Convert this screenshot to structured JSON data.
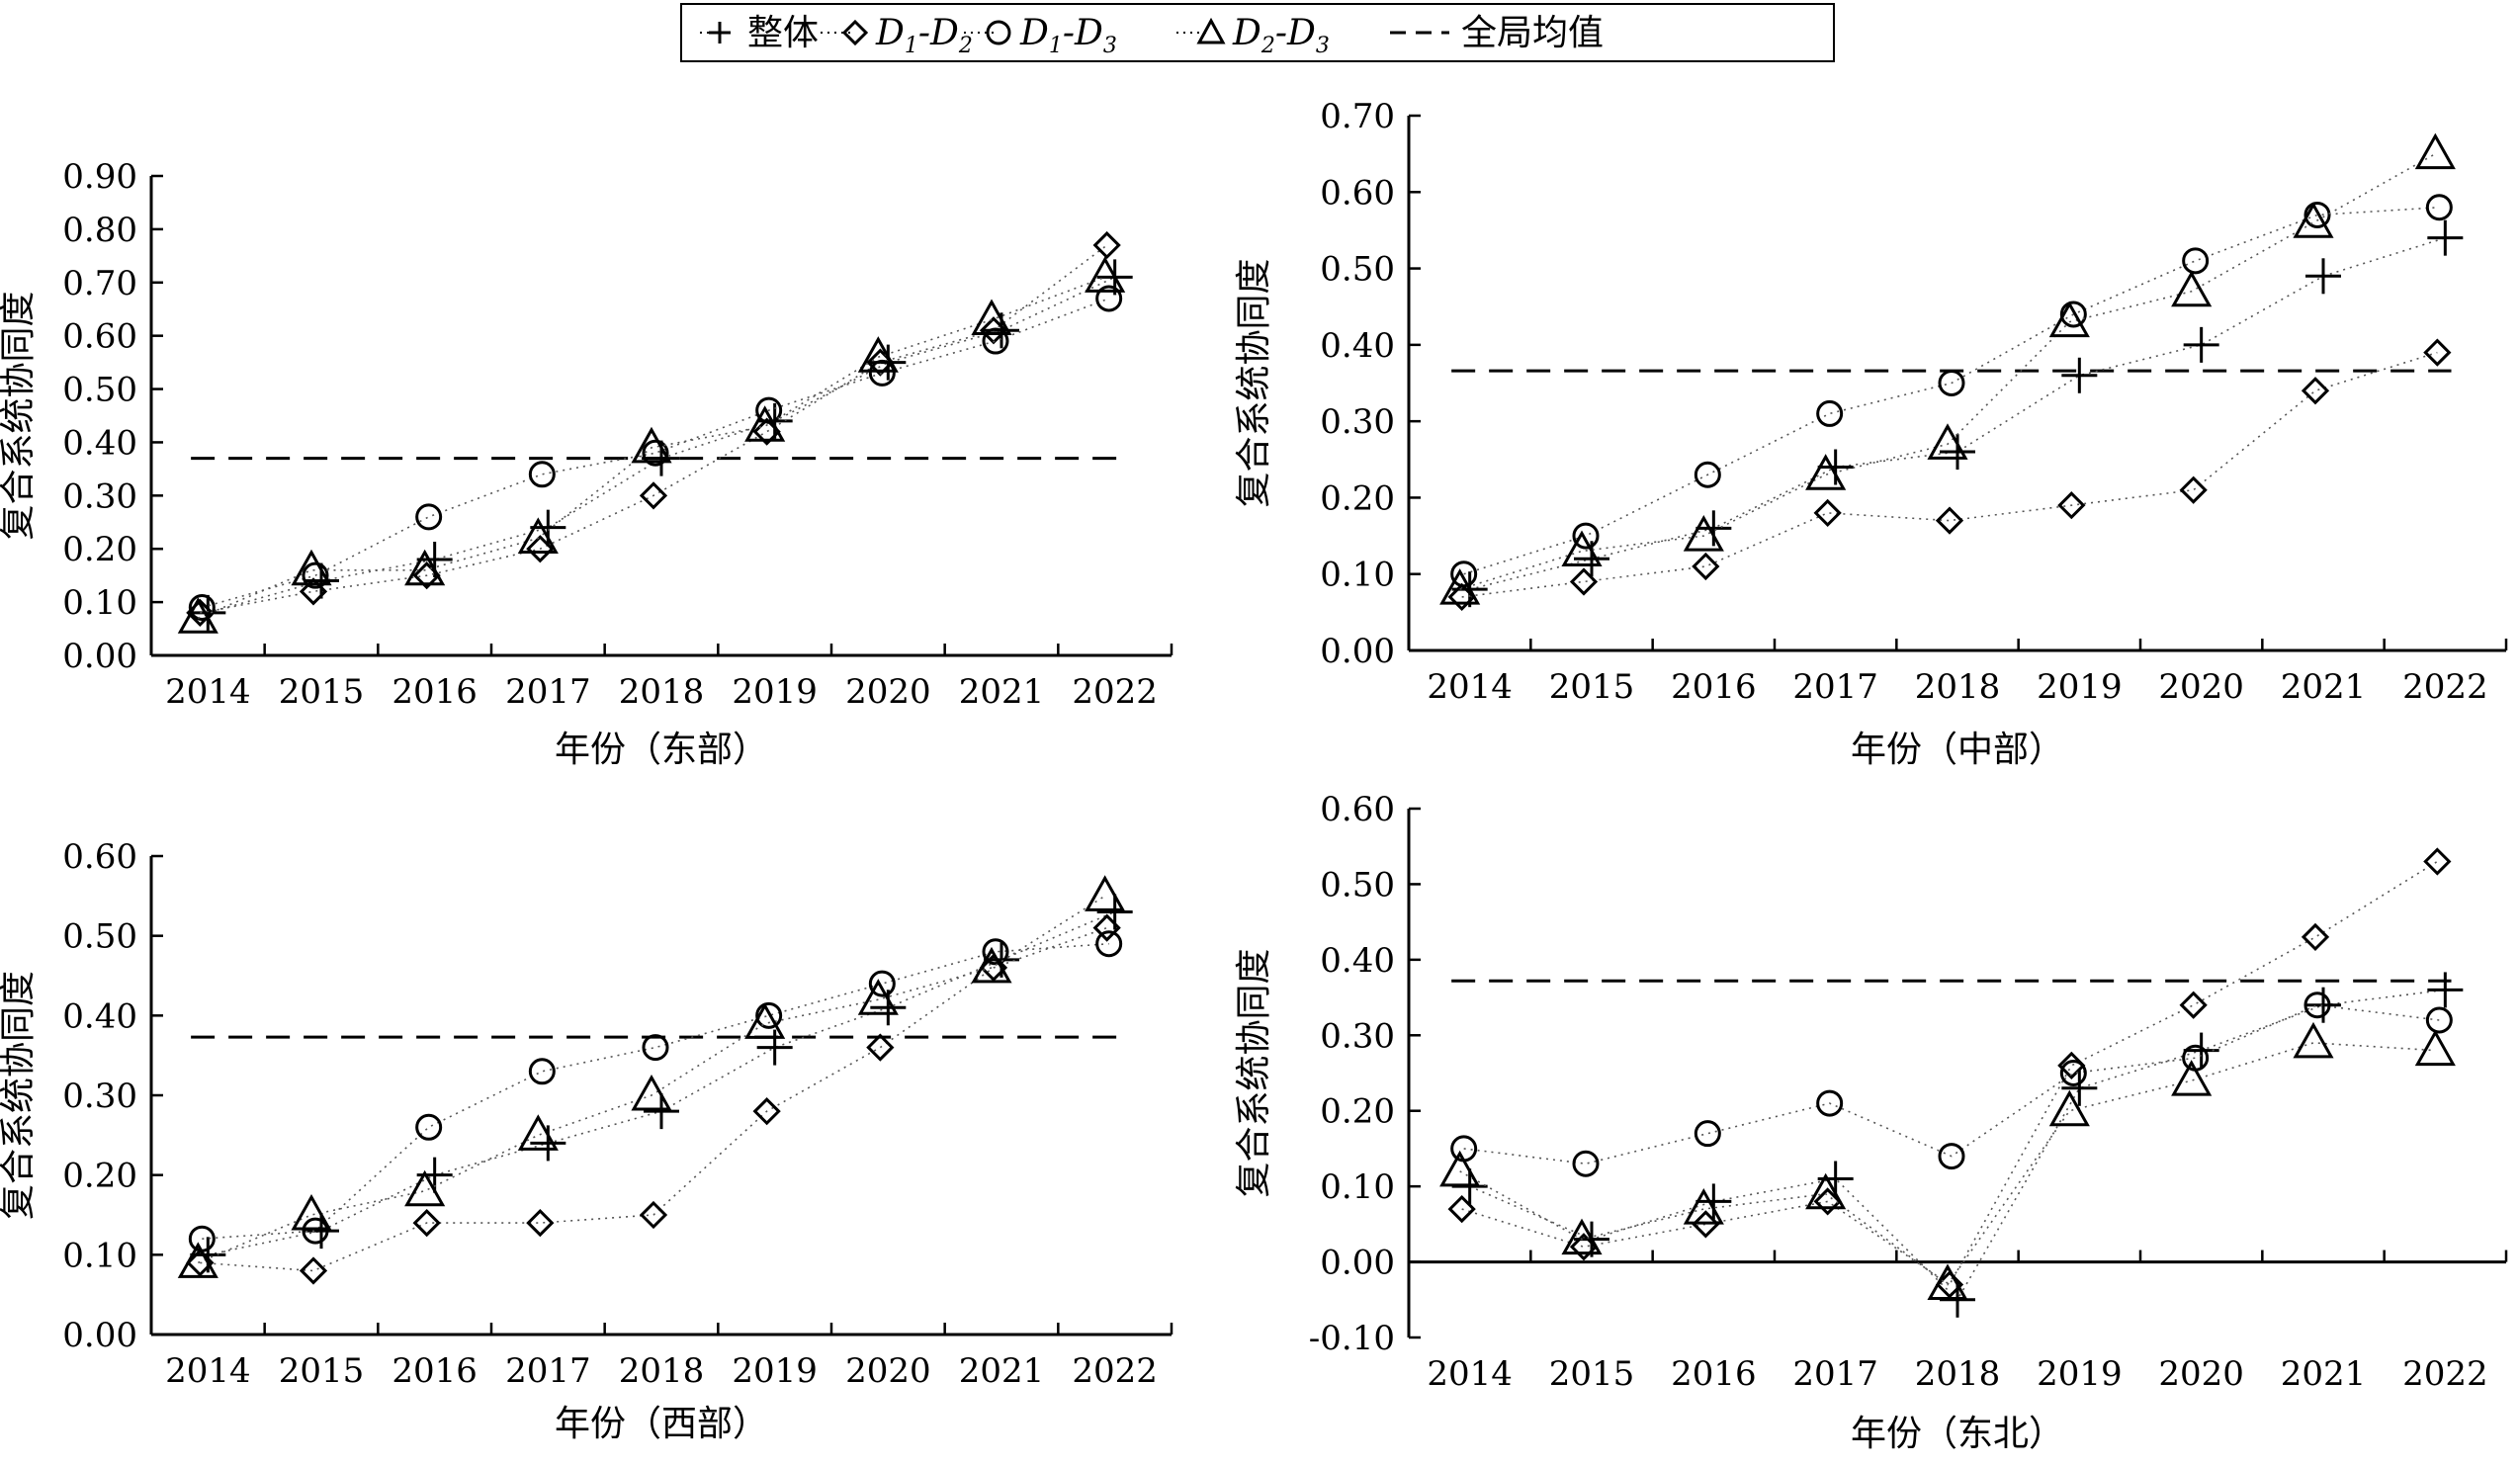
{
  "legend": {
    "items": [
      {
        "key": "overall",
        "label": "整体",
        "marker": "plus-icon"
      },
      {
        "key": "d12",
        "label_main1": "D",
        "label_sub1": "1",
        "label_main2": "-D",
        "label_sub2": "2",
        "marker": "diamond-icon"
      },
      {
        "key": "d13",
        "label_main1": "D",
        "label_sub1": "1",
        "label_main2": "-D",
        "label_sub2": "3",
        "marker": "circle-icon"
      },
      {
        "key": "d23",
        "label_main1": "D",
        "label_sub1": "2",
        "label_main2": "-D",
        "label_sub2": "3",
        "marker": "triangle-icon"
      },
      {
        "key": "mean",
        "label": "全局均值",
        "marker": "dashed-line-icon"
      }
    ]
  },
  "chart_data": [
    {
      "id": "east",
      "type": "scatter",
      "xlabel": "年份（东部）",
      "ylabel": "复合系统协同度",
      "categories": [
        "2014",
        "2015",
        "2016",
        "2017",
        "2018",
        "2019",
        "2020",
        "2021",
        "2022"
      ],
      "ylim": [
        0,
        0.9
      ],
      "yticks": [
        "0.00",
        "0.10",
        "0.20",
        "0.30",
        "0.40",
        "0.50",
        "0.60",
        "0.70",
        "0.80",
        "0.90"
      ],
      "ytick_step": 0.1,
      "global_mean": 0.37,
      "series": [
        {
          "key": "overall",
          "values": [
            0.08,
            0.14,
            0.18,
            0.24,
            0.37,
            0.44,
            0.55,
            0.61,
            0.71
          ]
        },
        {
          "key": "d12",
          "values": [
            0.08,
            0.12,
            0.15,
            0.2,
            0.3,
            0.42,
            0.55,
            0.61,
            0.77
          ]
        },
        {
          "key": "d13",
          "values": [
            0.09,
            0.15,
            0.26,
            0.34,
            0.38,
            0.46,
            0.53,
            0.59,
            0.67
          ]
        },
        {
          "key": "d23",
          "values": [
            0.07,
            0.16,
            0.16,
            0.22,
            0.39,
            0.43,
            0.56,
            0.63,
            0.71
          ]
        }
      ]
    },
    {
      "id": "central",
      "type": "scatter",
      "xlabel": "年份（中部）",
      "ylabel": "复合系统协同度",
      "categories": [
        "2014",
        "2015",
        "2016",
        "2017",
        "2018",
        "2019",
        "2020",
        "2021",
        "2022"
      ],
      "ylim": [
        0,
        0.7
      ],
      "yticks": [
        "0.00",
        "0.10",
        "0.20",
        "0.30",
        "0.40",
        "0.50",
        "0.60",
        "0.70"
      ],
      "ytick_step": 0.1,
      "global_mean": 0.366,
      "series": [
        {
          "key": "overall",
          "values": [
            0.08,
            0.12,
            0.16,
            0.24,
            0.26,
            0.36,
            0.4,
            0.49,
            0.54
          ]
        },
        {
          "key": "d12",
          "values": [
            0.07,
            0.09,
            0.11,
            0.18,
            0.17,
            0.19,
            0.21,
            0.34,
            0.39
          ]
        },
        {
          "key": "d13",
          "values": [
            0.1,
            0.15,
            0.23,
            0.31,
            0.35,
            0.44,
            0.51,
            0.57,
            0.58
          ]
        },
        {
          "key": "d23",
          "values": [
            0.08,
            0.13,
            0.15,
            0.23,
            0.27,
            0.43,
            0.47,
            0.56,
            0.65
          ]
        }
      ]
    },
    {
      "id": "west",
      "type": "scatter",
      "xlabel": "年份（西部）",
      "ylabel": "复合系统协同度",
      "categories": [
        "2014",
        "2015",
        "2016",
        "2017",
        "2018",
        "2019",
        "2020",
        "2021",
        "2022"
      ],
      "ylim": [
        0,
        0.6
      ],
      "yticks": [
        "0.00",
        "0.10",
        "0.20",
        "0.30",
        "0.40",
        "0.50",
        "0.60"
      ],
      "ytick_step": 0.1,
      "global_mean": 0.373,
      "series": [
        {
          "key": "overall",
          "values": [
            0.1,
            0.13,
            0.2,
            0.24,
            0.28,
            0.36,
            0.41,
            0.47,
            0.53
          ]
        },
        {
          "key": "d12",
          "values": [
            0.09,
            0.08,
            0.14,
            0.14,
            0.15,
            0.28,
            0.36,
            0.46,
            0.51
          ]
        },
        {
          "key": "d13",
          "values": [
            0.12,
            0.13,
            0.26,
            0.33,
            0.36,
            0.4,
            0.44,
            0.48,
            0.49
          ]
        },
        {
          "key": "d23",
          "values": [
            0.09,
            0.15,
            0.18,
            0.25,
            0.3,
            0.39,
            0.42,
            0.46,
            0.55
          ]
        }
      ]
    },
    {
      "id": "northeast",
      "type": "scatter",
      "xlabel": "年份（东北）",
      "ylabel": "复合系统协同度",
      "categories": [
        "2014",
        "2015",
        "2016",
        "2017",
        "2018",
        "2019",
        "2020",
        "2021",
        "2022"
      ],
      "ylim": [
        -0.1,
        0.6
      ],
      "yticks": [
        "-0.10",
        "0.00",
        "0.10",
        "0.20",
        "0.30",
        "0.40",
        "0.50",
        "0.60"
      ],
      "ytick_step": 0.1,
      "global_mean": 0.372,
      "series": [
        {
          "key": "overall",
          "values": [
            0.1,
            0.03,
            0.08,
            0.11,
            -0.05,
            0.23,
            0.28,
            0.34,
            0.36
          ]
        },
        {
          "key": "d12",
          "values": [
            0.07,
            0.02,
            0.05,
            0.08,
            -0.03,
            0.26,
            0.34,
            0.43,
            0.53
          ]
        },
        {
          "key": "d13",
          "values": [
            0.15,
            0.13,
            0.17,
            0.21,
            0.14,
            0.25,
            0.27,
            0.34,
            0.32
          ]
        },
        {
          "key": "d23",
          "values": [
            0.12,
            0.03,
            0.07,
            0.09,
            -0.03,
            0.2,
            0.24,
            0.29,
            0.28
          ]
        }
      ]
    }
  ]
}
